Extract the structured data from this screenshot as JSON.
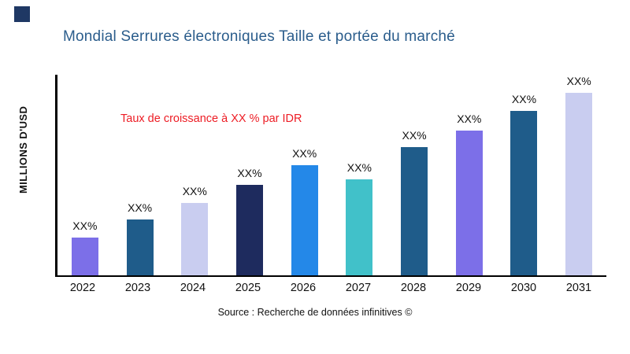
{
  "page": {
    "title": "Mondial Serrures électroniques Taille et portée du marché",
    "y_axis_label": "MILLIONS D'USD",
    "annotation": "Taux de croissance à XX % par IDR",
    "source": "Source : Recherche de données infinitives ©"
  },
  "branding": {
    "corner_square_color": "#1F3864",
    "title_color": "#2B5D8C",
    "annotation_color": "#ED1C24"
  },
  "chart_data": {
    "type": "bar",
    "title": "Mondial Serrures électroniques Taille et portée du marché",
    "xlabel": "",
    "ylabel": "MILLIONS D'USD",
    "categories": [
      "2022",
      "2023",
      "2024",
      "2025",
      "2026",
      "2027",
      "2028",
      "2029",
      "2030",
      "2031"
    ],
    "values": [
      19,
      28,
      36,
      45,
      55,
      48,
      64,
      72,
      82,
      91
    ],
    "value_units": "relative height, percent of plot area (no numeric axis shown)",
    "bar_labels": [
      "XX%",
      "XX%",
      "XX%",
      "XX%",
      "XX%",
      "XX%",
      "XX%",
      "XX%",
      "XX%",
      "XX%"
    ],
    "bar_colors": [
      "#7C6FE8",
      "#1F5C8A",
      "#C9CDF0",
      "#1E2B5E",
      "#2488E8",
      "#41C1C9",
      "#1F5C8A",
      "#7C6FE8",
      "#1F5C8A",
      "#C9CDF0"
    ],
    "ylim": [
      0,
      100
    ],
    "grid": false,
    "legend": false,
    "annotation": "Taux de croissance à XX % par IDR",
    "source": "Source : Recherche de données infinitives ©"
  }
}
